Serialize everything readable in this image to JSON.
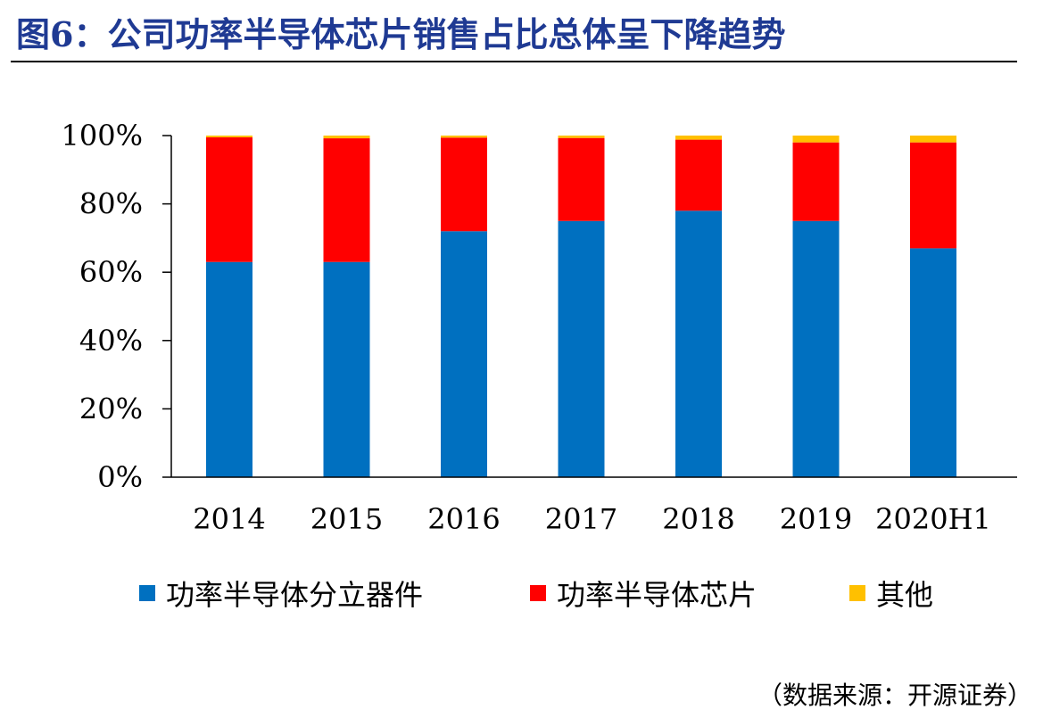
{
  "header": {
    "title": "图6：公司功率半导体芯片销售占比总体呈下降趋势"
  },
  "source": "（数据来源：开源证券）",
  "colors": {
    "series": [
      "#0070C0",
      "#FF0000",
      "#FFC000"
    ]
  },
  "chart_data": {
    "type": "bar",
    "stacked": true,
    "categories": [
      "2014",
      "2015",
      "2016",
      "2017",
      "2018",
      "2019",
      "2020H1"
    ],
    "series": [
      {
        "name": "功率半导体分立器件",
        "values": [
          63,
          63,
          72,
          75,
          78,
          75,
          67
        ]
      },
      {
        "name": "功率半导体芯片",
        "values": [
          36.5,
          36.2,
          27.4,
          24.3,
          20.8,
          23,
          31
        ]
      },
      {
        "name": "其他",
        "values": [
          0.5,
          0.8,
          0.6,
          0.7,
          1.2,
          2,
          2
        ]
      }
    ],
    "yticks": [
      "0%",
      "20%",
      "40%",
      "60%",
      "80%",
      "100%"
    ],
    "ylim": [
      0,
      100
    ],
    "legend": "bottom",
    "grid": false,
    "xlabel": "",
    "ylabel": ""
  }
}
